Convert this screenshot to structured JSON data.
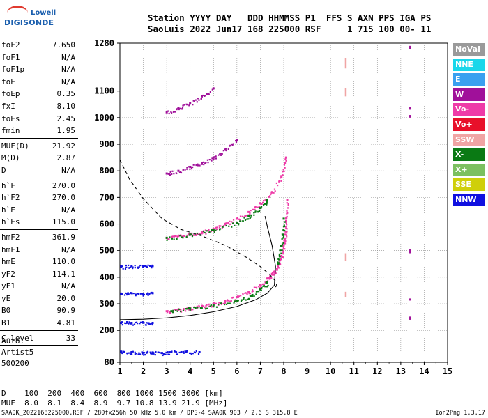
{
  "logo": {
    "brand": "Lowell",
    "product": "DIGISONDE"
  },
  "header": {
    "line1": "Station YYYY DAY   DDD HHMMSS P1  FFS S AXN PPS IGA PS",
    "line2": "SaoLuis 2022 Jun17 168 225000 RSF     1 715 100 00- 11"
  },
  "params_group1": [
    {
      "name": "foF2",
      "value": "7.650"
    },
    {
      "name": "foF1",
      "value": "N/A"
    },
    {
      "name": "foF1p",
      "value": "N/A"
    },
    {
      "name": "foE",
      "value": "N/A"
    },
    {
      "name": "foEp",
      "value": "0.35"
    },
    {
      "name": "fxI",
      "value": "8.10"
    },
    {
      "name": "foEs",
      "value": "2.45"
    },
    {
      "name": "fmin",
      "value": "1.95"
    }
  ],
  "params_group2": [
    {
      "name": "MUF(D)",
      "value": "21.92"
    },
    {
      "name": "M(D)",
      "value": "2.87"
    },
    {
      "name": "D",
      "value": "N/A"
    }
  ],
  "params_group3": [
    {
      "name": "h`F",
      "value": "270.0"
    },
    {
      "name": "h`F2",
      "value": "270.0"
    },
    {
      "name": "h`E",
      "value": "N/A"
    },
    {
      "name": "h`Es",
      "value": "115.0"
    }
  ],
  "params_group4": [
    {
      "name": "hmF2",
      "value": "361.9"
    },
    {
      "name": "hmF1",
      "value": "N/A"
    },
    {
      "name": "hmE",
      "value": "110.0"
    },
    {
      "name": "yF2",
      "value": "114.1"
    },
    {
      "name": "yF1",
      "value": "N/A"
    },
    {
      "name": "yE",
      "value": "20.0"
    },
    {
      "name": "B0",
      "value": "90.9"
    },
    {
      "name": "B1",
      "value": "4.81"
    }
  ],
  "params_group5": [
    {
      "name": "C-level",
      "value": "33"
    }
  ],
  "auto": {
    "line1": "Auto:",
    "line2": "Artist5",
    "line3": "500200"
  },
  "legend": [
    {
      "label": "NoVal",
      "color": "#9a9a9a"
    },
    {
      "label": "NNE",
      "color": "#19d7ea"
    },
    {
      "label": "E",
      "color": "#3aa0f0"
    },
    {
      "label": "W",
      "color": "#a0109a"
    },
    {
      "label": "Vo-",
      "color": "#ee3ba8"
    },
    {
      "label": "Vo+",
      "color": "#e8102a"
    },
    {
      "label": "SSW",
      "color": "#f0a4a4"
    },
    {
      "label": "X-",
      "color": "#0a7a14"
    },
    {
      "label": "X+",
      "color": "#7cc060"
    },
    {
      "label": "SSE",
      "color": "#cfcf0a"
    },
    {
      "label": "NNW",
      "color": "#1010e0"
    }
  ],
  "muf_table": {
    "line1": "D    100  200  400  600  800 1000 1500 3000 [km]",
    "line2": "MUF  8.0  8.1  8.4  8.9  9.7 10.8 13.9 21.9 [MHz]"
  },
  "footer": {
    "left": "SAA0K_2022168225000.RSF / 280fx256h 50 kHz 5.0 km / DPS-4 SAA0K 903 / 2.6 S 315.8 E",
    "right": "Ion2Png 1.3.17"
  },
  "chart_data": {
    "type": "scatter",
    "title": "",
    "xlabel": "",
    "ylabel": "",
    "xlim": [
      1,
      15
    ],
    "ylim": [
      80,
      1280
    ],
    "x_ticks": [
      1,
      2,
      3,
      4,
      5,
      6,
      7,
      8,
      9,
      10,
      11,
      12,
      13,
      14,
      15
    ],
    "y_ticks": [
      80,
      200,
      300,
      400,
      500,
      600,
      700,
      800,
      900,
      1000,
      1100,
      1280
    ],
    "traces": [
      {
        "name": "O trace F2 (Vo-)",
        "color": "#ee3ba8",
        "x": [
          3.0,
          3.5,
          4.0,
          4.5,
          5.0,
          5.5,
          6.0,
          6.5,
          7.0,
          7.3,
          7.5,
          7.6
        ],
        "y": [
          272,
          278,
          285,
          292,
          300,
          310,
          325,
          345,
          372,
          395,
          412,
          420
        ]
      },
      {
        "name": "X trace F2 (X-)",
        "color": "#0a7a14",
        "x": [
          3.2,
          4.0,
          5.0,
          6.0,
          6.6,
          7.0,
          7.3
        ],
        "y": [
          272,
          282,
          295,
          312,
          330,
          355,
          380
        ]
      },
      {
        "name": "O trace F2 steep (Vo-)",
        "color": "#ee3ba8",
        "x": [
          7.6,
          7.8,
          7.9,
          8.0,
          8.05,
          8.1,
          8.15
        ],
        "y": [
          420,
          450,
          480,
          520,
          560,
          620,
          690
        ]
      },
      {
        "name": "X trace F2 steep (X-)",
        "color": "#0a7a14",
        "x": [
          7.75,
          7.85,
          7.95,
          8.0
        ],
        "y": [
          450,
          500,
          560,
          620
        ]
      },
      {
        "name": "Multihop O 2nd (Vo-)",
        "color": "#ee3ba8",
        "x": [
          3.0,
          3.5,
          4.0,
          4.5,
          5.0,
          5.5,
          6.0,
          6.5,
          7.0,
          7.5,
          7.9,
          8.1
        ],
        "y": [
          548,
          555,
          562,
          570,
          582,
          600,
          620,
          645,
          678,
          720,
          780,
          850
        ]
      },
      {
        "name": "Multihop X 2nd (X-)",
        "color": "#0a7a14",
        "x": [
          3.0,
          4.0,
          5.0,
          6.0,
          6.5,
          7.0,
          7.3
        ],
        "y": [
          548,
          560,
          578,
          605,
          630,
          660,
          690
        ]
      },
      {
        "name": "Multihop 3rd (Vo-)",
        "color": "#a0109a",
        "x": [
          3.0,
          3.5,
          4.0,
          4.5,
          5.0,
          5.5,
          6.0
        ],
        "y": [
          790,
          800,
          815,
          830,
          850,
          880,
          915
        ]
      },
      {
        "name": "Multihop 4th (Vo-)",
        "color": "#a0109a",
        "x": [
          3.0,
          3.5,
          4.0,
          4.5,
          5.0
        ],
        "y": [
          1020,
          1035,
          1055,
          1080,
          1110
        ]
      },
      {
        "name": "Es trace (NNW)",
        "color": "#1010e0",
        "x": [
          1.05,
          1.5,
          2.0,
          2.4,
          2.8,
          3.2,
          3.8,
          4.4
        ],
        "y": [
          120,
          118,
          116,
          117,
          115,
          118,
          120,
          118
        ]
      },
      {
        "name": "Es 2nd hop (NNW)",
        "color": "#1010e0",
        "x": [
          1.05,
          1.5,
          2.0,
          2.4
        ],
        "y": [
          228,
          228,
          230,
          228
        ]
      },
      {
        "name": "Es 3rd hop (NNW)",
        "color": "#1010e0",
        "x": [
          1.05,
          1.5,
          2.0,
          2.4
        ],
        "y": [
          338,
          340,
          338,
          340
        ]
      },
      {
        "name": "Es 4th hop (NNW)",
        "color": "#1010e0",
        "x": [
          1.05,
          1.5,
          2.0,
          2.4
        ],
        "y": [
          440,
          442,
          440,
          442
        ]
      }
    ],
    "profile_solid": {
      "x": [
        1.0,
        2.0,
        3.0,
        4.0,
        5.0,
        6.0,
        6.8,
        7.3,
        7.6,
        7.65,
        7.5,
        7.3,
        7.2
      ],
      "y": [
        240,
        242,
        247,
        256,
        270,
        290,
        315,
        340,
        370,
        440,
        520,
        590,
        630
      ]
    },
    "profile_dashed": {
      "x": [
        1.0,
        1.4,
        2.0,
        2.8,
        3.6,
        4.5,
        5.5,
        6.4,
        7.0,
        7.4,
        7.65,
        7.7,
        7.6
      ],
      "y": [
        842,
        770,
        695,
        620,
        580,
        555,
        520,
        475,
        440,
        410,
        385,
        370,
        355
      ]
    },
    "vertical_marks": [
      {
        "x": 10.65,
        "y": [
          1225,
          1185
        ],
        "color": "#f0a4a4"
      },
      {
        "x": 10.65,
        "y": [
          1110,
          1080
        ],
        "color": "#f0a4a4"
      },
      {
        "x": 10.65,
        "y": [
          490,
          460
        ],
        "color": "#f0a4a4"
      },
      {
        "x": 10.65,
        "y": [
          345,
          325
        ],
        "color": "#f0a4a4"
      },
      {
        "x": 13.4,
        "y": [
          1270,
          1258
        ],
        "color": "#a0109a"
      },
      {
        "x": 13.4,
        "y": [
          1040,
          1030
        ],
        "color": "#a0109a"
      },
      {
        "x": 13.4,
        "y": [
          1010,
          1000
        ],
        "color": "#a0109a"
      },
      {
        "x": 13.4,
        "y": [
          505,
          490
        ],
        "color": "#a0109a"
      },
      {
        "x": 13.4,
        "y": [
          320,
          312
        ],
        "color": "#a0109a"
      },
      {
        "x": 13.4,
        "y": [
          252,
          240
        ],
        "color": "#a0109a"
      }
    ]
  }
}
